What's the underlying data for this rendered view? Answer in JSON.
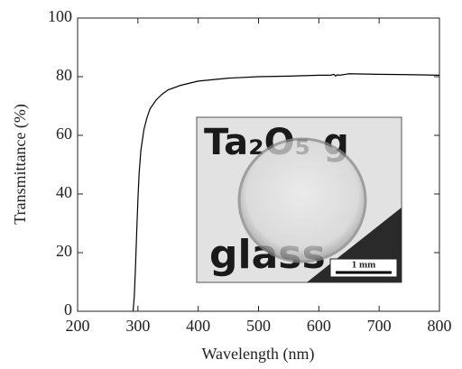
{
  "chart_data": {
    "type": "line",
    "x_label": "Wavelength (nm)",
    "y_label": "Transmittance (%)",
    "x": [
      292,
      294,
      296,
      298,
      300,
      302,
      305,
      310,
      315,
      320,
      330,
      340,
      350,
      370,
      400,
      450,
      500,
      550,
      600,
      620,
      625,
      628,
      630,
      635,
      650,
      700,
      750,
      800
    ],
    "series": [
      {
        "color": "#000000",
        "values": [
          0,
          5,
          15,
          27,
          38,
          47,
          55,
          62,
          66,
          69,
          72,
          74,
          75.5,
          77,
          78.5,
          79.5,
          80,
          80.2,
          80.5,
          80.5,
          80.8,
          80.2,
          80.6,
          80.5,
          81,
          80.8,
          80.7,
          80.5
        ]
      }
    ],
    "xlim": [
      200,
      800
    ],
    "xticks": [
      200,
      300,
      400,
      500,
      600,
      700,
      800
    ],
    "ylim": [
      0,
      100
    ],
    "yticks": [
      0,
      20,
      40,
      60,
      80,
      100
    ],
    "inset": {
      "photo_text": [
        "Ta₂O₅ g",
        "glass"
      ],
      "scale_bar": "1 mm"
    }
  }
}
